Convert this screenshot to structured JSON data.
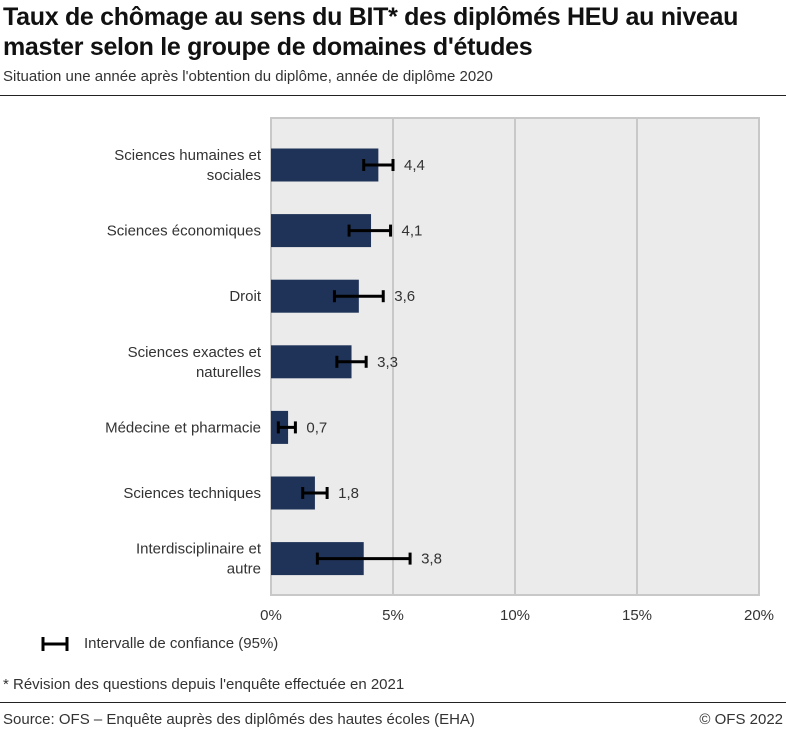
{
  "title": "Taux de chômage au sens du BIT* des diplômés HEU au niveau master selon le groupe de domaines d'études",
  "subtitle": "Situation une année après l'obtention du diplôme, année de diplôme 2020",
  "legend_label": "Intervalle de confiance (95%)",
  "note": "* Révision des questions depuis l'enquête effectuée en 2021",
  "source": "Source: OFS – Enquête auprès des diplômés des hautes écoles (EHA)",
  "copyright": "© OFS 2022",
  "colors": {
    "bar": "#1f3358",
    "plot_bg": "#ebebeb",
    "grid": "#c8c8c8",
    "error_bar": "#000000"
  },
  "chart_data": {
    "type": "bar",
    "orientation": "horizontal",
    "categories": [
      [
        "Sciences humaines et",
        "sociales"
      ],
      [
        "Sciences économiques"
      ],
      [
        "Droit"
      ],
      [
        "Sciences exactes et",
        "naturelles"
      ],
      [
        "Médecine et pharmacie"
      ],
      [
        "Sciences techniques"
      ],
      [
        "Interdisciplinaire et",
        "autre"
      ]
    ],
    "values": [
      4.4,
      4.1,
      3.6,
      3.3,
      0.7,
      1.8,
      3.8
    ],
    "value_labels": [
      "4,4",
      "4,1",
      "3,6",
      "3,3",
      "0,7",
      "1,8",
      "3,8"
    ],
    "ci_low": [
      3.8,
      3.2,
      2.6,
      2.7,
      0.3,
      1.3,
      1.9
    ],
    "ci_high": [
      5.0,
      4.9,
      4.6,
      3.9,
      1.0,
      2.3,
      5.7
    ],
    "xlim": [
      0,
      20
    ],
    "xticks": [
      0,
      5,
      10,
      15,
      20
    ],
    "xtick_labels": [
      "0%",
      "5%",
      "10%",
      "15%",
      "20%"
    ],
    "grid": true,
    "legend_position": "bottom-left"
  }
}
